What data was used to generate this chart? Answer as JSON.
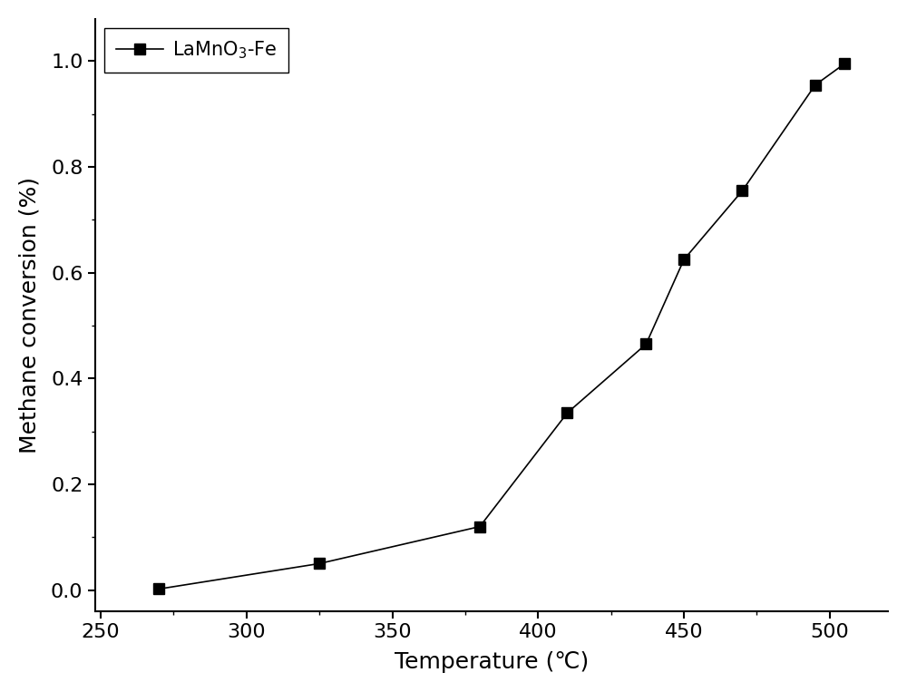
{
  "x": [
    270,
    325,
    380,
    410,
    437,
    450,
    470,
    495,
    505
  ],
  "y": [
    0.002,
    0.05,
    0.12,
    0.335,
    0.465,
    0.625,
    0.755,
    0.955,
    0.995
  ],
  "line_color": "#000000",
  "marker_color": "#000000",
  "marker": "s",
  "marker_size": 8,
  "line_width": 1.2,
  "legend_label": "LaMnO$_3$-Fe",
  "xlabel": "Temperature (℃)",
  "ylabel": "Methane conversion (%)",
  "xlim": [
    248,
    520
  ],
  "ylim": [
    -0.04,
    1.08
  ],
  "xticks": [
    250,
    300,
    350,
    400,
    450,
    500
  ],
  "yticks": [
    0.0,
    0.2,
    0.4,
    0.6,
    0.8,
    1.0
  ],
  "xlabel_fontsize": 18,
  "ylabel_fontsize": 18,
  "tick_fontsize": 16,
  "legend_fontsize": 15,
  "background_color": "#ffffff"
}
